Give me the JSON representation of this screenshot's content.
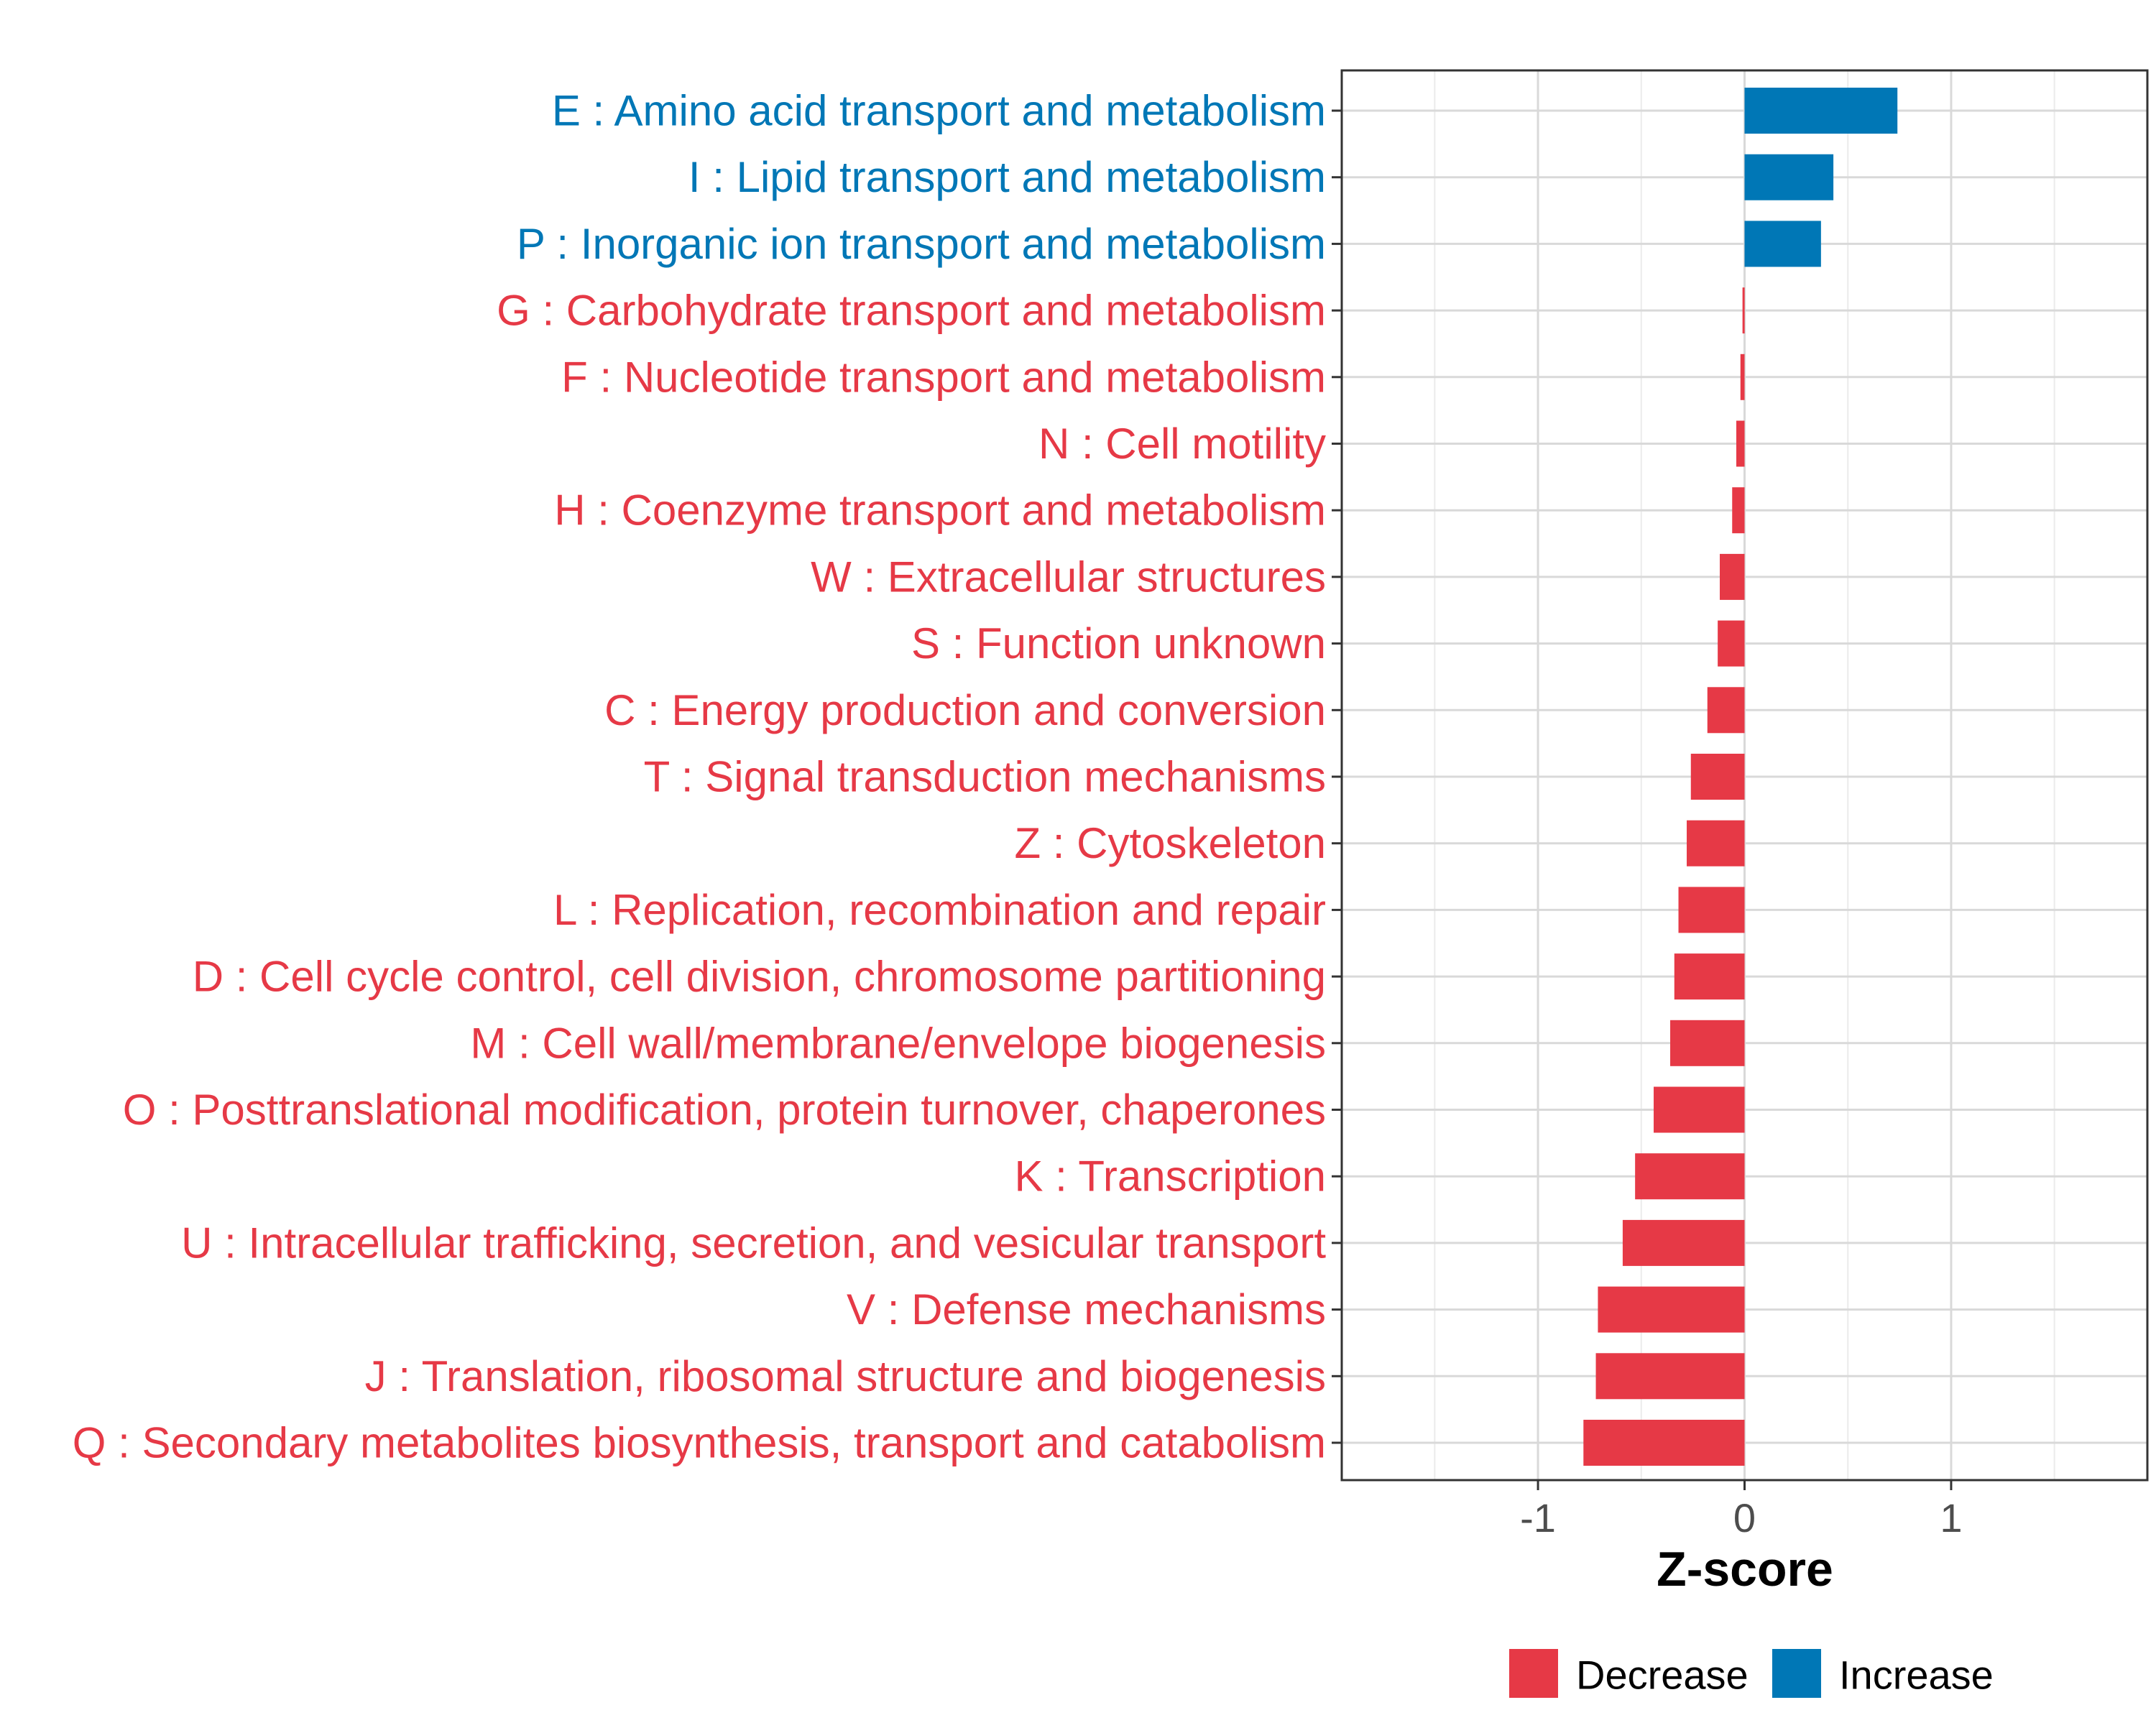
{
  "chart_data": {
    "type": "bar",
    "orientation": "horizontal",
    "title": "",
    "xlabel": "Z-score",
    "ylabel": "",
    "xlim": [
      -1.95,
      1.95
    ],
    "xticks": [
      -1,
      0,
      1
    ],
    "xtick_labels": [
      "-1",
      "0",
      "1"
    ],
    "grid": true,
    "legend_position": "bottom",
    "colors": {
      "Decrease": "#e63946",
      "Increase": "#0077b6"
    },
    "legend": [
      {
        "label": "Decrease",
        "color": "#e63946"
      },
      {
        "label": "Increase",
        "color": "#0077b6"
      }
    ],
    "categories": [
      "E : Amino acid transport and metabolism",
      "I : Lipid transport and metabolism",
      "P : Inorganic ion transport and metabolism",
      "G : Carbohydrate transport and metabolism",
      "F : Nucleotide transport and metabolism",
      "N : Cell motility",
      "H : Coenzyme transport and metabolism",
      "W : Extracellular structures",
      "S : Function unknown",
      "C : Energy production and conversion",
      "T : Signal transduction mechanisms",
      "Z : Cytoskeleton",
      "L : Replication, recombination and repair",
      "D : Cell cycle control, cell division, chromosome partitioning",
      "M : Cell wall/membrane/envelope biogenesis",
      "O : Posttranslational modification, protein turnover, chaperones",
      "K : Transcription",
      "U : Intracellular trafficking, secretion, and vesicular transport",
      "V : Defense mechanisms",
      "J : Translation, ribosomal structure and biogenesis",
      "Q : Secondary metabolites biosynthesis, transport and catabolism"
    ],
    "values": [
      0.74,
      0.43,
      0.37,
      -0.01,
      -0.02,
      -0.04,
      -0.06,
      -0.12,
      -0.13,
      -0.18,
      -0.26,
      -0.28,
      -0.32,
      -0.34,
      -0.36,
      -0.44,
      -0.53,
      -0.59,
      -0.71,
      -0.72,
      -0.78
    ],
    "groups": [
      "Increase",
      "Increase",
      "Increase",
      "Decrease",
      "Decrease",
      "Decrease",
      "Decrease",
      "Decrease",
      "Decrease",
      "Decrease",
      "Decrease",
      "Decrease",
      "Decrease",
      "Decrease",
      "Decrease",
      "Decrease",
      "Decrease",
      "Decrease",
      "Decrease",
      "Decrease",
      "Decrease"
    ]
  }
}
